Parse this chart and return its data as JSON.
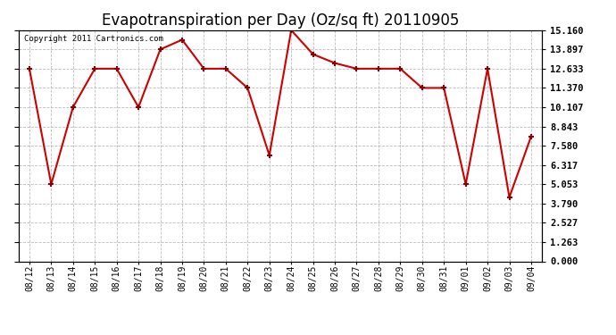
{
  "title": "Evapotranspiration per Day (Oz/sq ft) 20110905",
  "copyright": "Copyright 2011 Cartronics.com",
  "dates": [
    "08/12",
    "08/13",
    "08/14",
    "08/15",
    "08/16",
    "08/17",
    "08/18",
    "08/19",
    "08/20",
    "08/21",
    "08/22",
    "08/23",
    "08/24",
    "08/25",
    "08/26",
    "08/27",
    "08/28",
    "08/29",
    "08/30",
    "08/31",
    "09/01",
    "09/02",
    "09/03",
    "09/04"
  ],
  "values": [
    12.633,
    5.053,
    10.107,
    12.633,
    12.633,
    10.107,
    13.897,
    14.53,
    12.633,
    12.633,
    11.37,
    6.95,
    15.16,
    13.58,
    13.0,
    12.633,
    12.633,
    12.633,
    11.37,
    11.37,
    5.053,
    12.633,
    4.2,
    8.2
  ],
  "line_color": "#cc0000",
  "marker_color": "#880000",
  "background_color": "#ffffff",
  "grid_color": "#aaaaaa",
  "yticks": [
    0.0,
    1.263,
    2.527,
    3.79,
    5.053,
    6.317,
    7.58,
    8.843,
    10.107,
    11.37,
    12.633,
    13.897,
    15.16
  ],
  "ylim": [
    0.0,
    15.16
  ],
  "title_fontsize": 12
}
